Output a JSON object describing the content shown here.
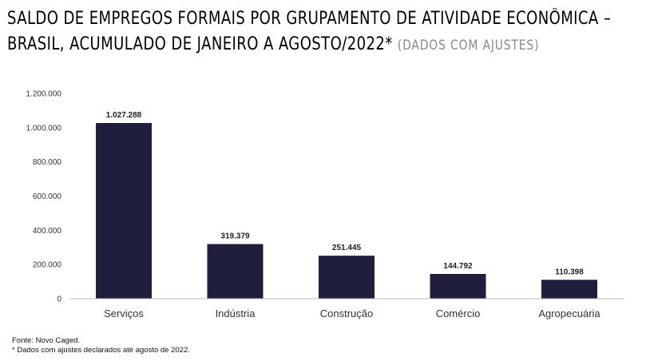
{
  "title": {
    "line1": "SALDO DE EMPREGOS FORMAIS POR GRUPAMENTO DE ATIVIDADE ECONÔMICA –",
    "line2": "BRASIL, ACUMULADO DE JANEIRO A AGOSTO/2022*",
    "subtitle": "(DADOS COM AJUSTES)"
  },
  "chart_data": {
    "type": "bar",
    "title": "SALDO DE EMPREGOS FORMAIS POR GRUPAMENTO DE ATIVIDADE ECONÔMICA – BRASIL, ACUMULADO DE JANEIRO A AGOSTO/2022* (DADOS COM AJUSTES)",
    "categories": [
      "Serviços",
      "Indústria",
      "Construção",
      "Comércio",
      "Agropecuária"
    ],
    "values": [
      1027288,
      319379,
      251445,
      144792,
      110398
    ],
    "value_labels": [
      "1.027.288",
      "319.379",
      "251.445",
      "144.792",
      "110.398"
    ],
    "ylim": [
      0,
      1200000
    ],
    "yticks": [
      0,
      200000,
      400000,
      600000,
      800000,
      1000000,
      1200000
    ],
    "ytick_labels": [
      "0",
      "200.000",
      "400.000",
      "600.000",
      "800.000",
      "1.000.000",
      "1.200.000"
    ],
    "xlabel": "",
    "ylabel": "",
    "grid": false,
    "bar_color": "#1f1f3d"
  },
  "footer": {
    "source": "Fonte: Novo Caged.",
    "note": "* Dados com ajustes declarados até agosto de 2022."
  }
}
